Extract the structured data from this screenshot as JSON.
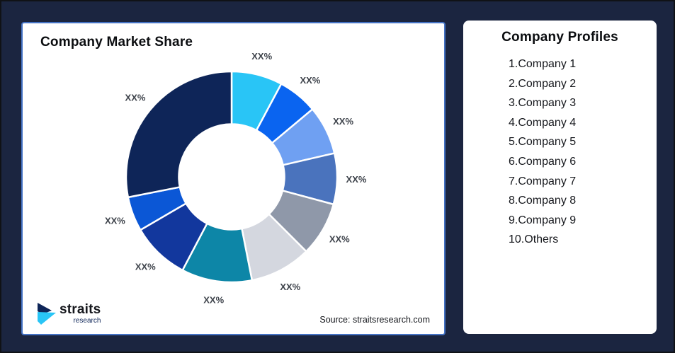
{
  "page": {
    "background_color": "#1B2540",
    "frame_border_color": "#101216"
  },
  "chart_card": {
    "title": "Company Market Share",
    "source": "Source: straitsresearch.com",
    "border_color": "#4472C4",
    "logo": {
      "brand": "straits",
      "sub": "research",
      "mark_navy": "#0E2558",
      "mark_cyan": "#29C5F6"
    }
  },
  "profiles_card": {
    "title": "Company Profiles",
    "items": [
      "1.Company 1",
      "2.Company 2",
      "3.Company 3",
      "4.Company 4",
      "5.Company 5",
      "6.Company 6",
      "7.Company 7",
      "8.Company 8",
      "9.Company 9",
      "10.Others"
    ]
  },
  "chart_data": {
    "type": "pie",
    "subtype": "donut",
    "title": "Company Market Share",
    "legend_position": "none",
    "value_unit": "percent (placeholder labels)",
    "labels": [
      "XX%",
      "XX%",
      "XX%",
      "XX%",
      "XX%",
      "XX%",
      "XX%",
      "XX%",
      "XX%",
      "XX%"
    ],
    "values": [
      7.8,
      6.1,
      7.5,
      7.8,
      8.3,
      9.4,
      10.8,
      8.9,
      5.3,
      28.1
    ],
    "colors": [
      "#29C5F6",
      "#0A64F0",
      "#6FA0F2",
      "#4A73BD",
      "#8F98A9",
      "#D4D7DF",
      "#0D86A7",
      "#12379D",
      "#0B57D6",
      "#0E2558"
    ],
    "label_color": "#3E434B",
    "start_angle_deg": 0,
    "direction": "clockwise",
    "inner_radius_ratio": 0.5,
    "segment_gap_color": "#FFFFFF"
  }
}
